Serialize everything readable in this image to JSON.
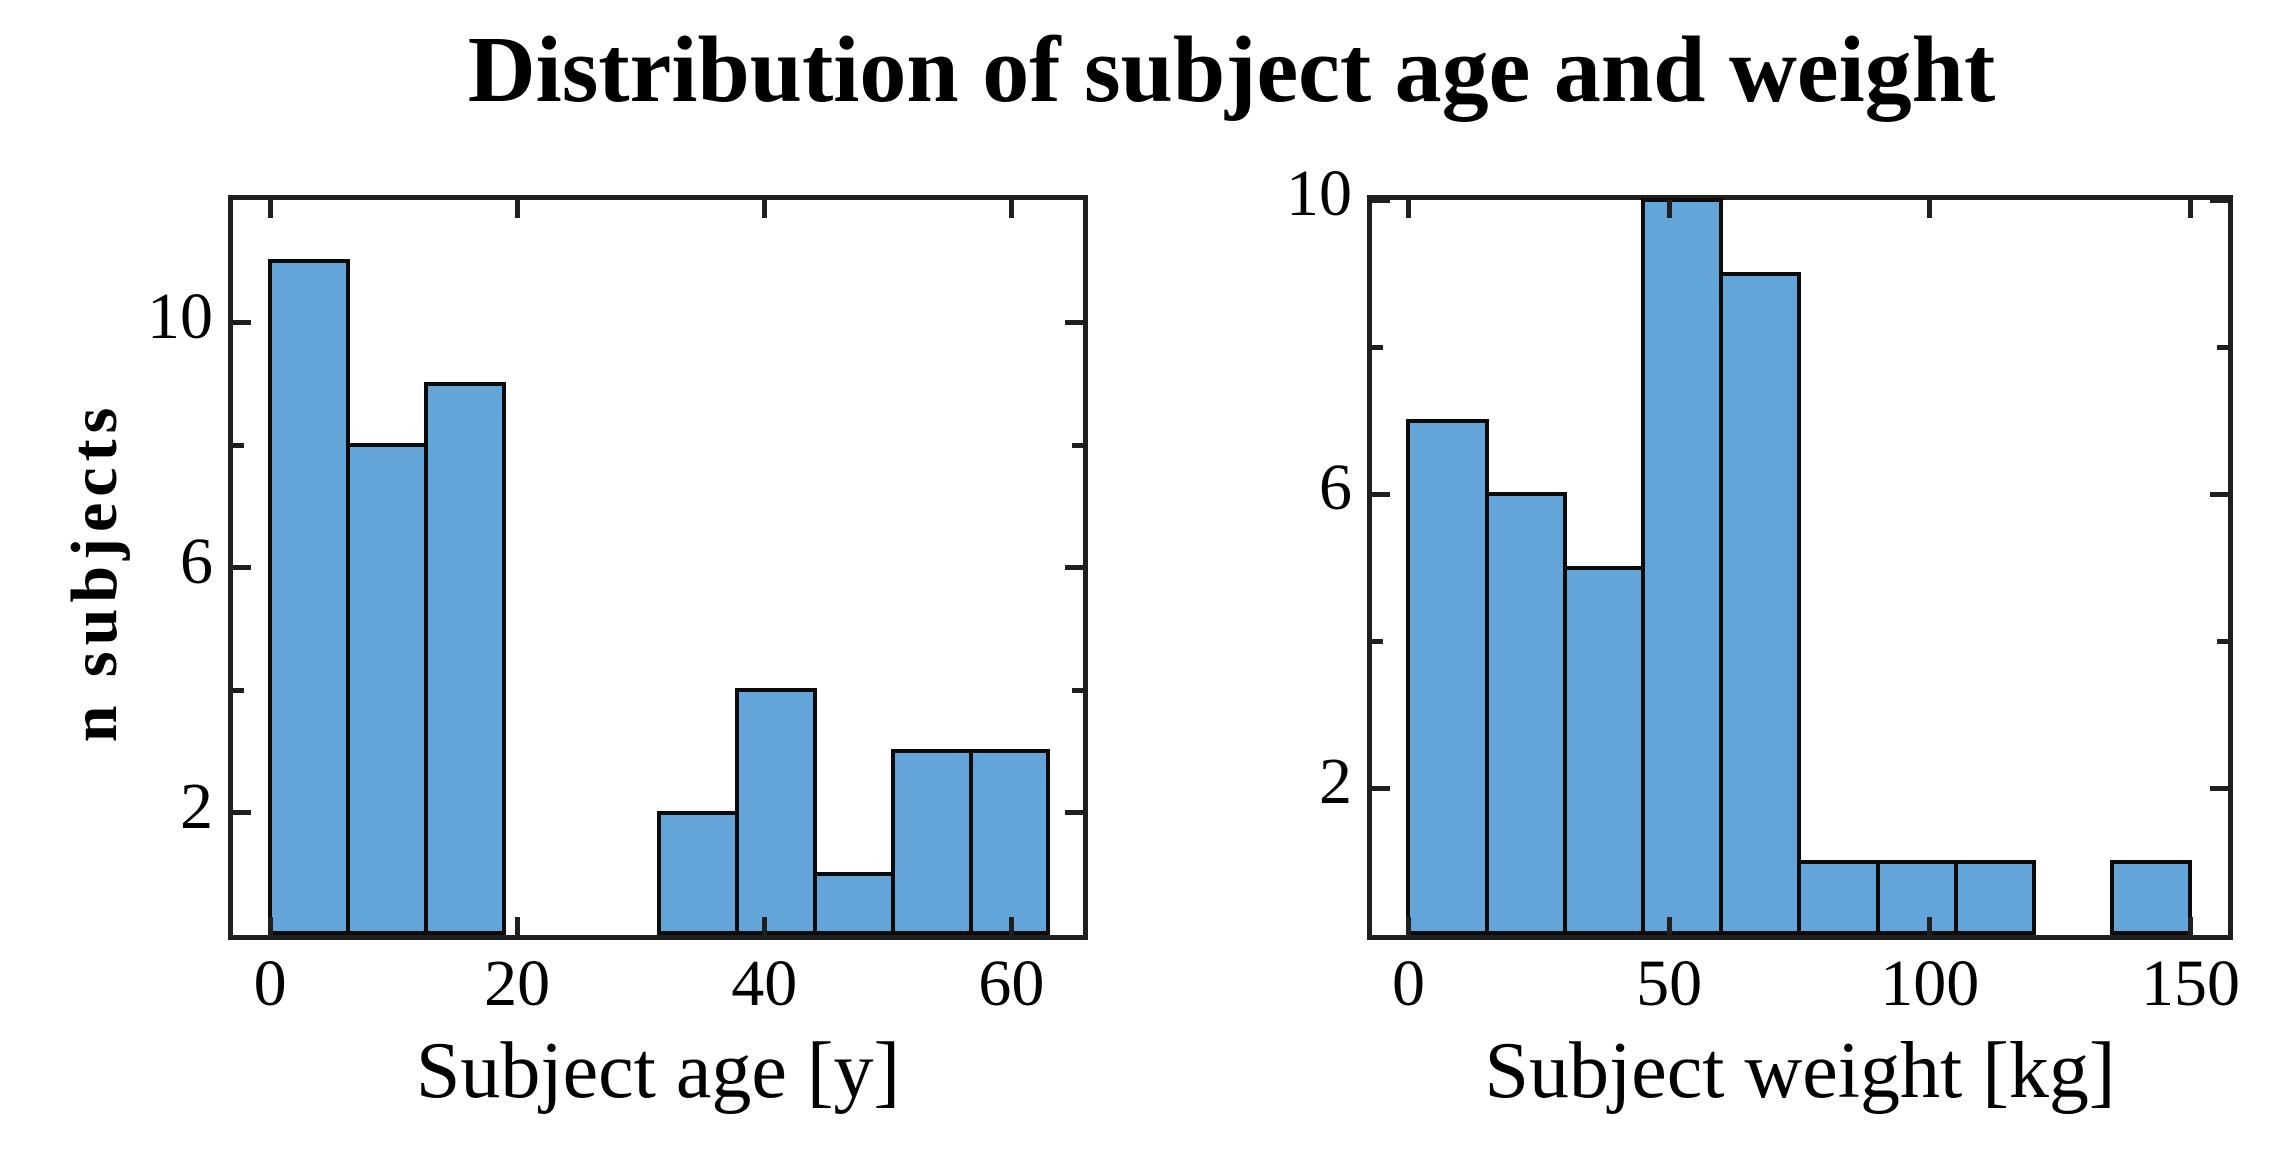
{
  "title": "Distribution of subject age and weight",
  "shared_ylabel": "n subjects",
  "colors": {
    "bar_fill": "#63a5d8",
    "bar_edge": "#0b0b0b",
    "axis": "#1f1f1f",
    "text": "#000000"
  },
  "chart_data": [
    {
      "type": "bar",
      "subtype": "histogram",
      "xlabel": "Subject age [y]",
      "ylabel": "n subjects",
      "bin_edges": [
        0,
        6.3,
        12.6,
        18.9,
        25.2,
        31.5,
        37.8,
        44.1,
        50.4,
        56.7,
        63
      ],
      "values": [
        11,
        8,
        9,
        0,
        0,
        2,
        4,
        1,
        3,
        3
      ],
      "xticks": [
        0,
        20,
        40,
        60
      ],
      "yticks_major": [
        2,
        6,
        10
      ],
      "yticks_minor": [
        4,
        8
      ],
      "xlim": [
        -3,
        65.8
      ],
      "ylim": [
        0,
        12
      ],
      "grid": false,
      "legend": null
    },
    {
      "type": "bar",
      "subtype": "histogram",
      "xlabel": "Subject weight [kg]",
      "ylabel": "n subjects",
      "bin_edges": [
        0,
        15,
        30,
        45,
        60,
        75,
        90,
        105,
        120,
        135,
        150
      ],
      "values": [
        7,
        6,
        5,
        10,
        9,
        1,
        1,
        1,
        0,
        1
      ],
      "xticks": [
        0,
        50,
        100,
        150
      ],
      "yticks_major": [
        2,
        6,
        10
      ],
      "yticks_minor": [
        4,
        8
      ],
      "xlim": [
        -7,
        157.2
      ],
      "ylim": [
        0,
        10
      ],
      "grid": false,
      "legend": null
    }
  ]
}
